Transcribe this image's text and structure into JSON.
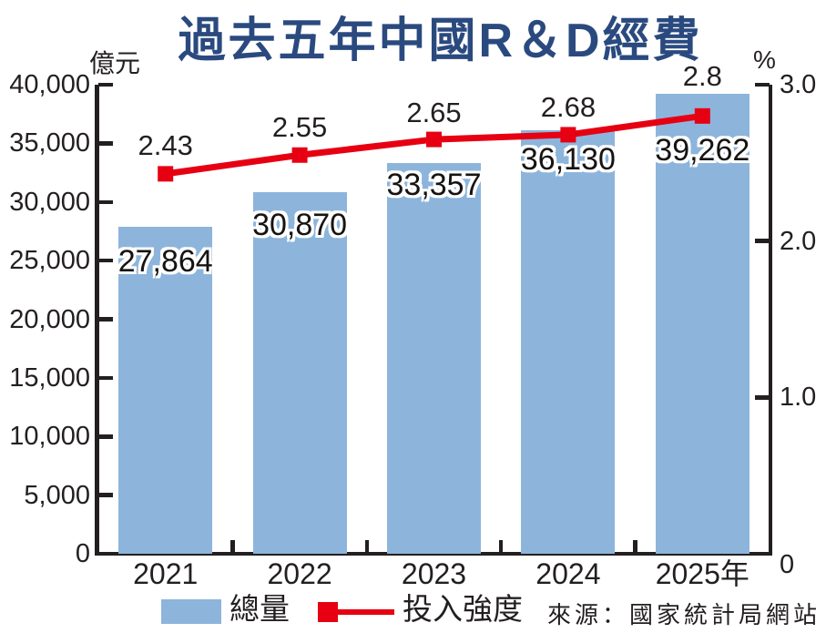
{
  "source": "來源：國家統計局網站",
  "colors": {
    "title": "#2a4a7f",
    "axis": "#231f20",
    "bar": "#8db5dc",
    "line": "#e60012"
  },
  "chart_data": {
    "type": "bar+line",
    "title": "過去五年中國R＆D經費",
    "categories": [
      "2021",
      "2022",
      "2023",
      "2024",
      "2025年"
    ],
    "series": [
      {
        "name": "總量",
        "type": "bar",
        "axis": "left",
        "color": "#8db5dc",
        "values": [
          27864,
          30870,
          33357,
          36130,
          39262
        ],
        "value_labels": [
          "27,864",
          "30,870",
          "33,357",
          "36,130",
          "39,262"
        ]
      },
      {
        "name": "投入強度",
        "type": "line",
        "axis": "right",
        "color": "#e60012",
        "values": [
          2.43,
          2.55,
          2.65,
          2.68,
          2.8
        ],
        "value_labels": [
          "2.43",
          "2.55",
          "2.65",
          "2.68",
          "2.8"
        ]
      }
    ],
    "left_axis": {
      "label": "億元",
      "min": 0,
      "max": 40000,
      "tick_step": 5000,
      "tick_labels": [
        "0",
        "5,000",
        "10,000",
        "15,000",
        "20,000",
        "25,000",
        "30,000",
        "35,000",
        "40,000"
      ]
    },
    "right_axis": {
      "label": "%",
      "min": 0,
      "max": 3,
      "ticks": [
        0,
        1,
        2,
        3
      ],
      "tick_labels": [
        "0",
        "1.0",
        "2.0",
        "3.0"
      ]
    },
    "grid": false,
    "legend_position": "bottom",
    "layout_hints": {
      "bar_label_dy": [
        38,
        36,
        24,
        32,
        62
      ],
      "line_label_dy": [
        -31,
        -30,
        -29,
        -30,
        -43
      ]
    }
  }
}
